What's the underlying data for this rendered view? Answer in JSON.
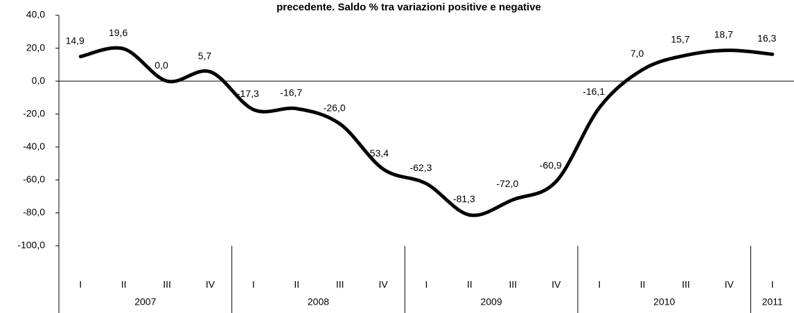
{
  "chart_data": {
    "type": "line",
    "title": "precedente. Saldo % tra variazioni positive e negative",
    "groups": [
      {
        "label": "2007",
        "categories": [
          "I",
          "II",
          "III",
          "IV"
        ]
      },
      {
        "label": "2008",
        "categories": [
          "I",
          "II",
          "III",
          "IV"
        ]
      },
      {
        "label": "2009",
        "categories": [
          "I",
          "II",
          "III",
          "IV"
        ]
      },
      {
        "label": "2010",
        "categories": [
          "I",
          "II",
          "III",
          "IV"
        ]
      },
      {
        "label": "2011",
        "categories": [
          "I"
        ]
      }
    ],
    "series": [
      {
        "color": "#000000",
        "values": [
          14.9,
          19.6,
          0.0,
          5.7,
          -17.3,
          -16.7,
          -26.0,
          -53.4,
          -62.3,
          -81.3,
          -72.0,
          -60.9,
          -16.1,
          7.0,
          15.7,
          18.7,
          16.3
        ],
        "value_labels": [
          "14,9",
          "19,6",
          "0,0",
          "5,7",
          "-17,3",
          "-16,7",
          "-26,0",
          "-53,4",
          "-62,3",
          "-81,3",
          "-72,0",
          "-60,9",
          "-16,1",
          "7,0",
          "15,7",
          "18,7",
          "16,3"
        ]
      }
    ],
    "ylim": [
      -100,
      40
    ],
    "yticks": [
      {
        "value": -100,
        "label": "-100,0"
      },
      {
        "value": -80,
        "label": "-80,0"
      },
      {
        "value": -60,
        "label": "-60,0"
      },
      {
        "value": -40,
        "label": "-40,0"
      },
      {
        "value": -20,
        "label": "-20,0"
      },
      {
        "value": 0,
        "label": "0,0"
      },
      {
        "value": 20,
        "label": "20,0"
      },
      {
        "value": 40,
        "label": "40,0"
      }
    ],
    "smooth": true
  }
}
